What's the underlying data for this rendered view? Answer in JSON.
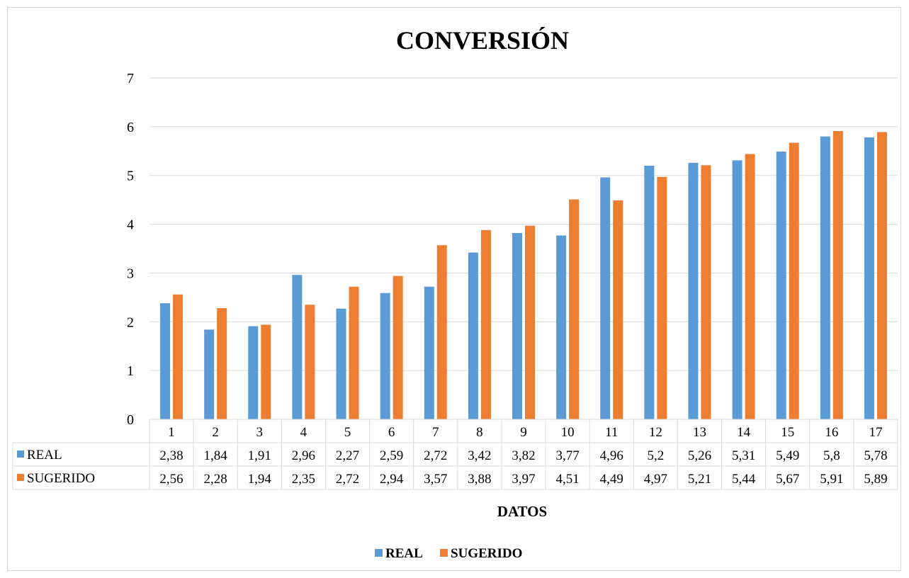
{
  "chart_data": {
    "type": "bar",
    "title": "CONVERSIÓN",
    "xlabel": "DATOS",
    "ylabel": "",
    "ylim": [
      0,
      7
    ],
    "yticks": [
      0,
      1,
      2,
      3,
      4,
      5,
      6,
      7
    ],
    "grid": true,
    "legend_position": "bottom",
    "categories": [
      "1",
      "2",
      "3",
      "4",
      "5",
      "6",
      "7",
      "8",
      "9",
      "10",
      "11",
      "12",
      "13",
      "14",
      "15",
      "16",
      "17"
    ],
    "series": [
      {
        "name": "REAL",
        "color": "#5b9bd5",
        "values": [
          2.38,
          1.84,
          1.91,
          2.96,
          2.27,
          2.59,
          2.72,
          3.42,
          3.82,
          3.77,
          4.96,
          5.2,
          5.26,
          5.31,
          5.49,
          5.8,
          5.78
        ],
        "labels": [
          "2,38",
          "1,84",
          "1,91",
          "2,96",
          "2,27",
          "2,59",
          "2,72",
          "3,42",
          "3,82",
          "3,77",
          "4,96",
          "5,2",
          "5,26",
          "5,31",
          "5,49",
          "5,8",
          "5,78"
        ]
      },
      {
        "name": "SUGERIDO",
        "color": "#ed7d31",
        "values": [
          2.56,
          2.28,
          1.94,
          2.35,
          2.72,
          2.94,
          3.57,
          3.88,
          3.97,
          4.51,
          4.49,
          4.97,
          5.21,
          5.44,
          5.67,
          5.91,
          5.89
        ],
        "labels": [
          "2,56",
          "2,28",
          "1,94",
          "2,35",
          "2,72",
          "2,94",
          "3,57",
          "3,88",
          "3,97",
          "4,51",
          "4,49",
          "4,97",
          "5,21",
          "5,44",
          "5,67",
          "5,91",
          "5,89"
        ]
      }
    ]
  }
}
